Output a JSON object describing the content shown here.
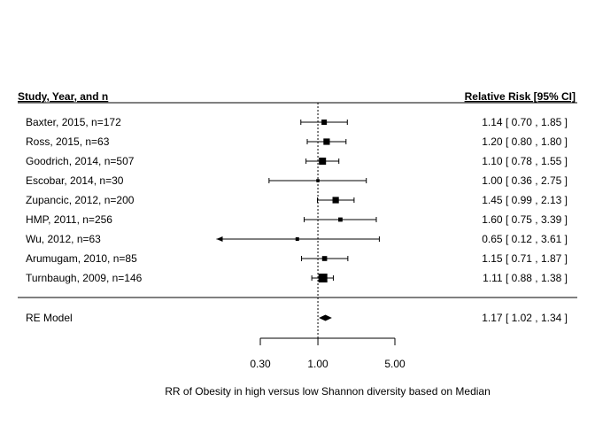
{
  "chart_data": {
    "type": "forest",
    "header_left": "Study, Year, and n",
    "header_right": "Relative Risk [95% CI]",
    "x_scale": "log",
    "xlim": [
      0.118,
      3.8
    ],
    "xticks": [
      {
        "value": 0.3,
        "label": "0.30"
      },
      {
        "value": 1.0,
        "label": "1.00"
      },
      {
        "value": 5.0,
        "label": "5.00"
      }
    ],
    "reference_line": 1.0,
    "xlabel": "RR of Obesity in high versus low Shannon diversity based on Median",
    "studies": [
      {
        "label": "Baxter, 2015, n=172",
        "estimate": 1.14,
        "lower": 0.7,
        "upper": 1.85,
        "ci_text": "1.14 [ 0.70 , 1.85 ]",
        "weight": 0.5
      },
      {
        "label": "Ross, 2015, n=63",
        "estimate": 1.2,
        "lower": 0.8,
        "upper": 1.8,
        "ci_text": "1.20 [ 0.80 , 1.80 ]",
        "weight": 0.65
      },
      {
        "label": "Goodrich, 2014, n=507",
        "estimate": 1.1,
        "lower": 0.78,
        "upper": 1.55,
        "ci_text": "1.10 [ 0.78 , 1.55 ]",
        "weight": 0.75
      },
      {
        "label": "Escobar, 2014, n=30",
        "estimate": 1.0,
        "lower": 0.36,
        "upper": 2.75,
        "ci_text": "1.00 [ 0.36 , 2.75 ]",
        "weight": 0.2
      },
      {
        "label": "Zupancic, 2012, n=200",
        "estimate": 1.45,
        "lower": 0.99,
        "upper": 2.13,
        "ci_text": "1.45 [ 0.99 , 2.13 ]",
        "weight": 0.65
      },
      {
        "label": "HMP, 2011, n=256",
        "estimate": 1.6,
        "lower": 0.75,
        "upper": 3.39,
        "ci_text": "1.60 [ 0.75 , 3.39 ]",
        "weight": 0.35
      },
      {
        "label": "Wu, 2012, n=63",
        "estimate": 0.65,
        "lower": 0.12,
        "upper": 3.61,
        "ci_text": "0.65 [ 0.12 , 3.61 ]",
        "weight": 0.25,
        "lower_arrow": true
      },
      {
        "label": "Arumugam, 2010, n=85",
        "estimate": 1.15,
        "lower": 0.71,
        "upper": 1.87,
        "ci_text": "1.15 [ 0.71 , 1.87 ]",
        "weight": 0.45
      },
      {
        "label": "Turnbaugh, 2009, n=146",
        "estimate": 1.11,
        "lower": 0.88,
        "upper": 1.38,
        "ci_text": "1.11 [ 0.88 , 1.38 ]",
        "weight": 1.0
      }
    ],
    "summary": {
      "label": "RE Model",
      "estimate": 1.17,
      "lower": 1.02,
      "upper": 1.34,
      "ci_text": "1.17 [ 1.02 , 1.34 ]"
    }
  }
}
